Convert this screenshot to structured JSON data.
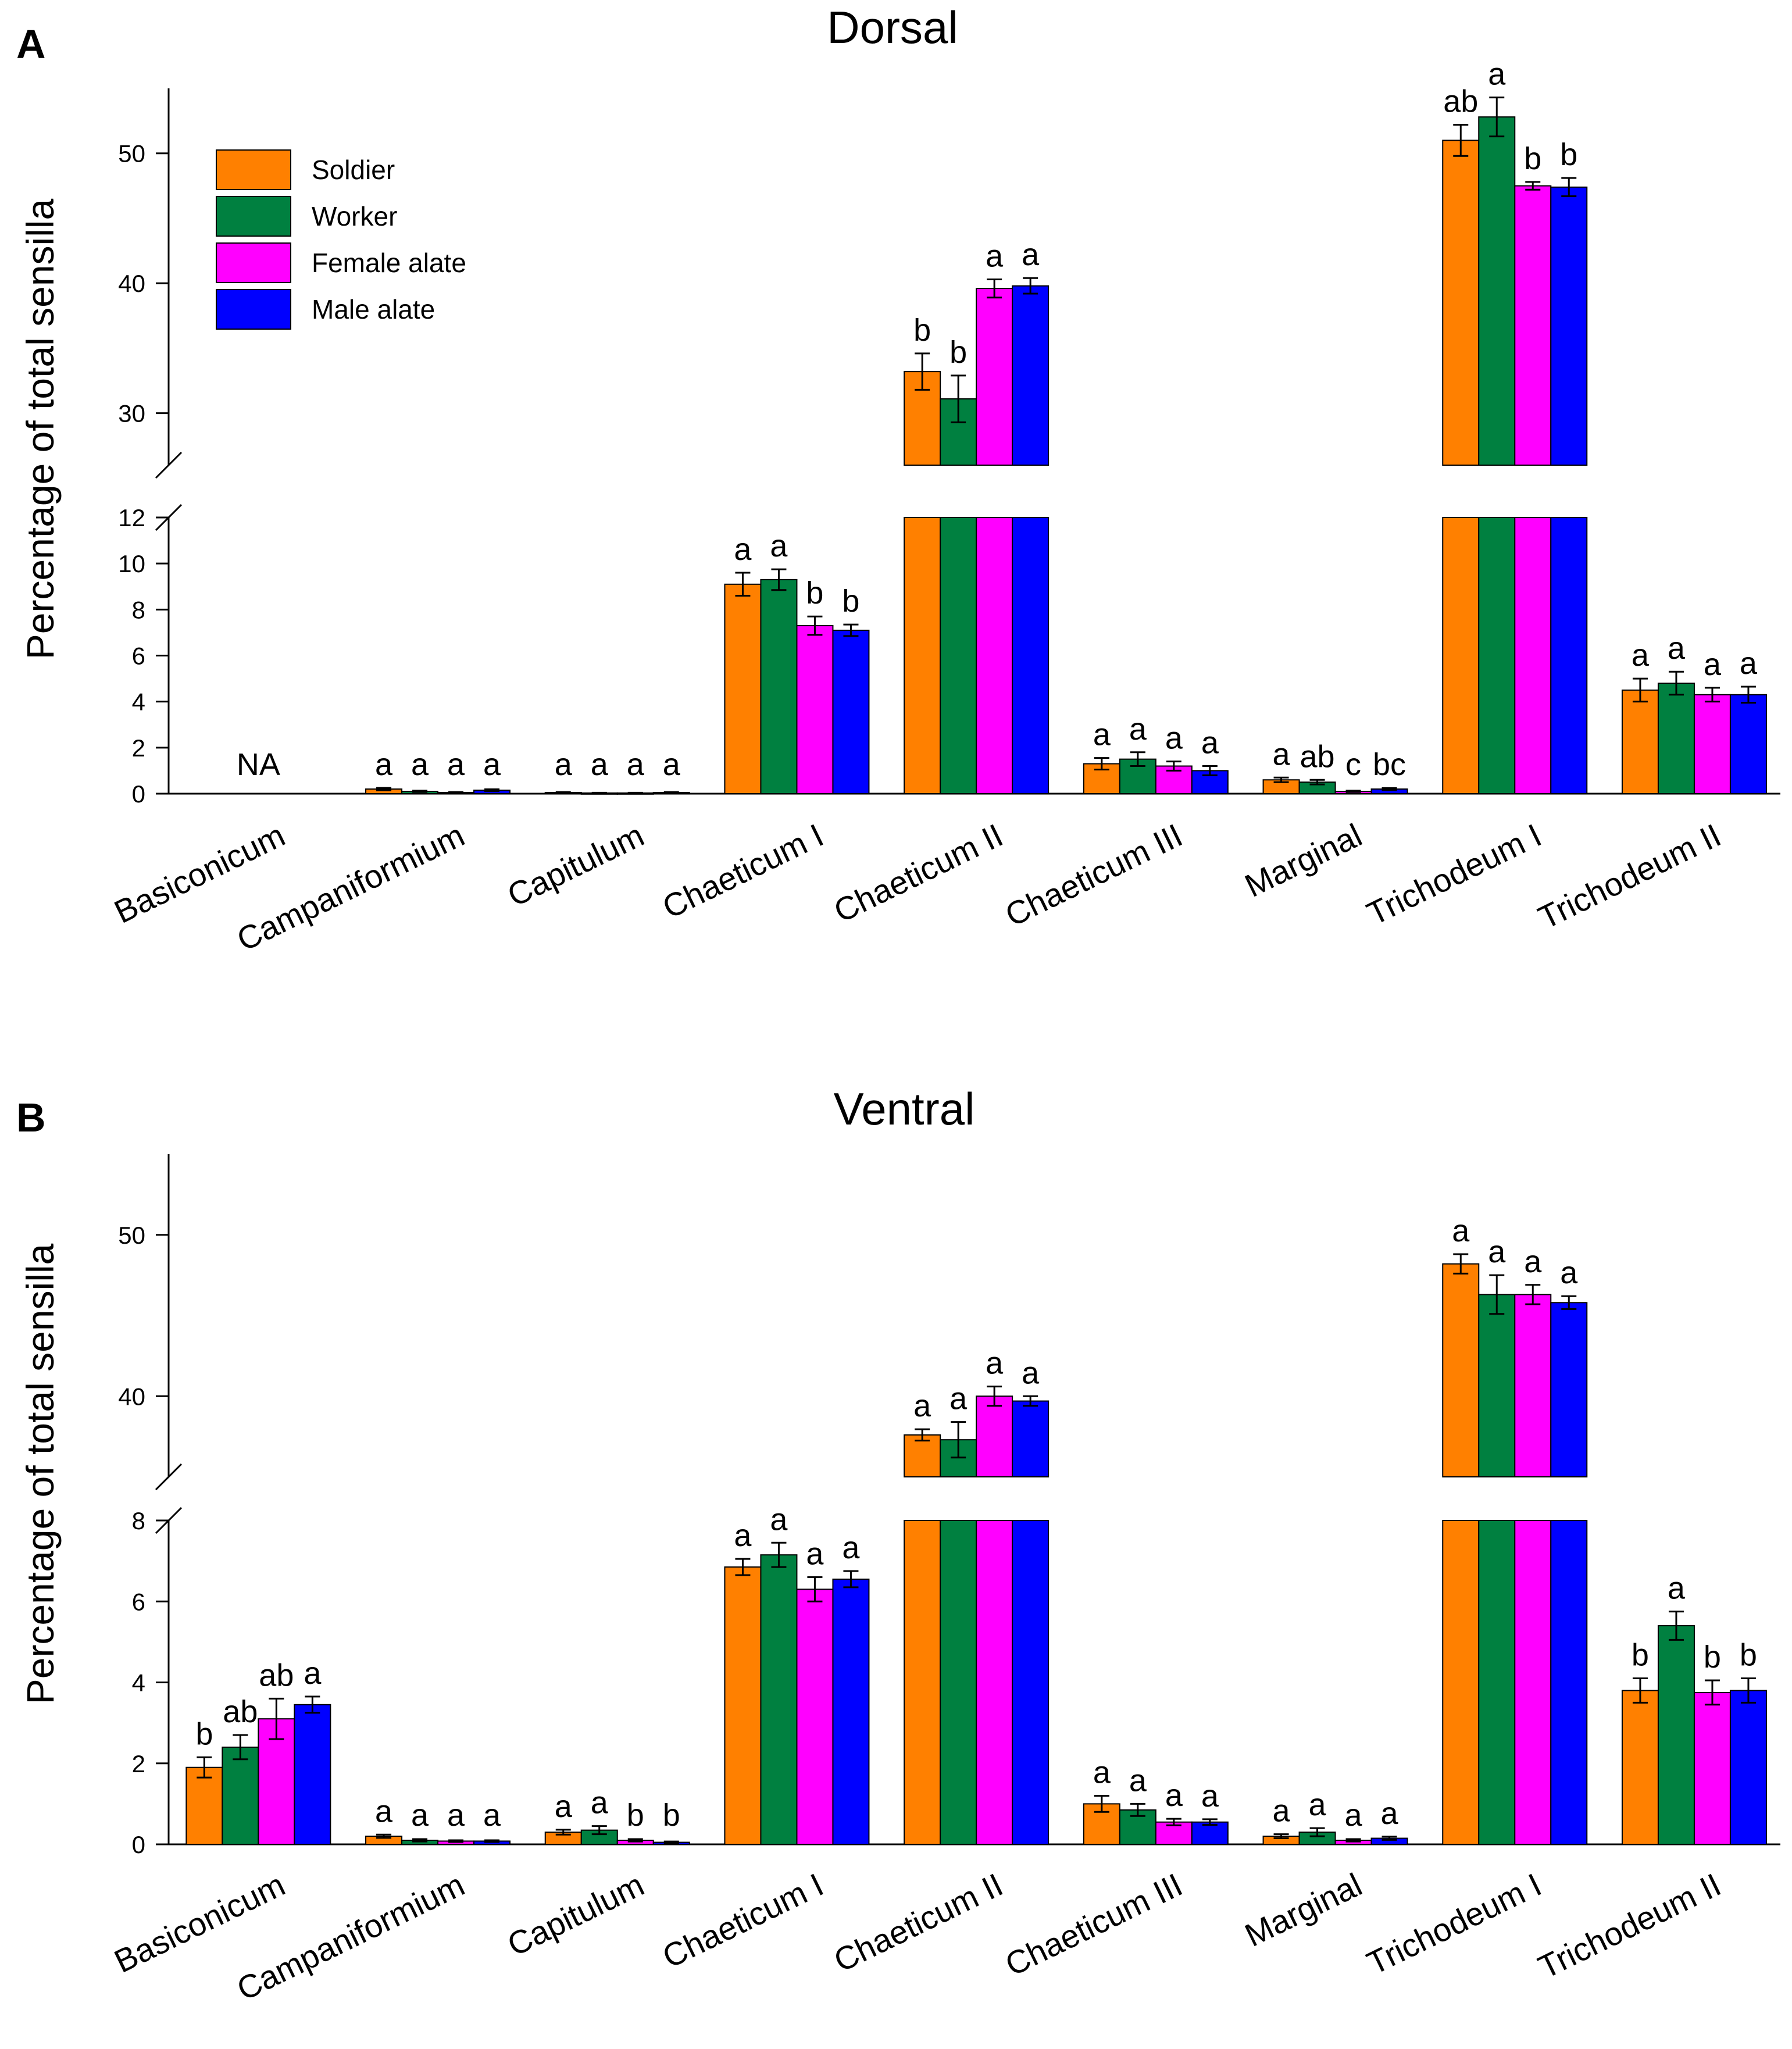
{
  "chart_data": [
    {
      "panel_label": "A",
      "type": "bar",
      "title": "Dorsal",
      "ylabel": "Percentage of total sensilla",
      "xlabel": "",
      "y_axis": {
        "segments": [
          {
            "ylim": [
              0,
              12
            ],
            "ticks": [
              0,
              2,
              4,
              6,
              8,
              10,
              12
            ]
          },
          {
            "ylim": [
              26,
              55
            ],
            "ticks": [
              30,
              40,
              50
            ]
          }
        ]
      },
      "categories": [
        "Basiconicum",
        "Campaniformium",
        "Capitulum",
        "Chaeticum I",
        "Chaeticum II",
        "Chaeticum III",
        "Marginal",
        "Trichodeum I",
        "Trichodeum II"
      ],
      "category_notes": [
        {
          "category": "Basiconicum",
          "text": "NA"
        }
      ],
      "series": [
        {
          "name": "Soldier",
          "color": "#ff8000",
          "values": [
            null,
            0.2,
            0.05,
            9.1,
            33.2,
            1.3,
            0.6,
            51.0,
            4.5
          ],
          "errors": [
            null,
            0.05,
            0.02,
            0.5,
            1.4,
            0.25,
            0.1,
            1.2,
            0.5
          ],
          "labels": [
            null,
            "a",
            "a",
            "a",
            "b",
            "a",
            "a",
            "ab",
            "a"
          ]
        },
        {
          "name": "Worker",
          "color": "#008040",
          "values": [
            null,
            0.1,
            0.03,
            9.3,
            31.1,
            1.5,
            0.5,
            52.8,
            4.8
          ],
          "errors": [
            null,
            0.03,
            0.01,
            0.45,
            1.8,
            0.3,
            0.1,
            1.5,
            0.5
          ],
          "labels": [
            null,
            "a",
            "a",
            "a",
            "b",
            "a",
            "ab",
            "a",
            "a"
          ]
        },
        {
          "name": "Female alate",
          "color": "#ff00ff",
          "values": [
            null,
            0.05,
            0.03,
            7.3,
            39.6,
            1.2,
            0.1,
            47.5,
            4.3
          ],
          "errors": [
            null,
            0.02,
            0.01,
            0.4,
            0.7,
            0.2,
            0.03,
            0.3,
            0.3
          ],
          "labels": [
            null,
            "a",
            "a",
            "b",
            "a",
            "a",
            "c",
            "b",
            "a"
          ]
        },
        {
          "name": "Male alate",
          "color": "#0000ff",
          "values": [
            null,
            0.15,
            0.05,
            7.1,
            39.8,
            1.0,
            0.2,
            47.4,
            4.3
          ],
          "errors": [
            null,
            0.04,
            0.02,
            0.25,
            0.6,
            0.2,
            0.04,
            0.7,
            0.35
          ],
          "labels": [
            null,
            "a",
            "a",
            "b",
            "a",
            "a",
            "bc",
            "b",
            "a"
          ]
        }
      ],
      "legend": {
        "position": "top-left",
        "entries": [
          "Soldier",
          "Worker",
          "Female alate",
          "Male alate"
        ]
      }
    },
    {
      "panel_label": "B",
      "type": "bar",
      "title": "Ventral",
      "ylabel": "Percentage of total sensilla",
      "xlabel": "",
      "y_axis": {
        "segments": [
          {
            "ylim": [
              0,
              8
            ],
            "ticks": [
              0,
              2,
              4,
              6,
              8
            ]
          },
          {
            "ylim": [
              35,
              55
            ],
            "ticks": [
              40,
              50
            ]
          }
        ]
      },
      "categories": [
        "Basiconicum",
        "Campaniformium",
        "Capitulum",
        "Chaeticum I",
        "Chaeticum II",
        "Chaeticum III",
        "Marginal",
        "Trichodeum I",
        "Trichodeum II"
      ],
      "series": [
        {
          "name": "Soldier",
          "color": "#ff8000",
          "values": [
            1.9,
            0.2,
            0.3,
            6.85,
            37.6,
            1.0,
            0.2,
            48.2,
            3.8
          ],
          "errors": [
            0.25,
            0.04,
            0.06,
            0.2,
            0.35,
            0.2,
            0.05,
            0.6,
            0.3
          ],
          "labels": [
            "b",
            "a",
            "a",
            "a",
            "a",
            "a",
            "a",
            "a",
            "b"
          ]
        },
        {
          "name": "Worker",
          "color": "#008040",
          "values": [
            2.4,
            0.1,
            0.35,
            7.15,
            37.3,
            0.85,
            0.3,
            46.3,
            5.4
          ],
          "errors": [
            0.3,
            0.03,
            0.1,
            0.3,
            1.1,
            0.15,
            0.1,
            1.2,
            0.35
          ],
          "labels": [
            "ab",
            "a",
            "a",
            "a",
            "a",
            "a",
            "a",
            "a",
            "a"
          ]
        },
        {
          "name": "Female alate",
          "color": "#ff00ff",
          "values": [
            3.1,
            0.08,
            0.1,
            6.3,
            40.0,
            0.55,
            0.1,
            46.3,
            3.75
          ],
          "errors": [
            0.5,
            0.02,
            0.03,
            0.3,
            0.6,
            0.08,
            0.03,
            0.6,
            0.3
          ],
          "labels": [
            "ab",
            "a",
            "b",
            "a",
            "a",
            "a",
            "a",
            "a",
            "b"
          ]
        },
        {
          "name": "Male alate",
          "color": "#0000ff",
          "values": [
            3.45,
            0.08,
            0.05,
            6.55,
            39.7,
            0.55,
            0.15,
            45.8,
            3.8
          ],
          "errors": [
            0.2,
            0.02,
            0.02,
            0.2,
            0.3,
            0.07,
            0.04,
            0.4,
            0.3
          ],
          "labels": [
            "a",
            "a",
            "b",
            "a",
            "a",
            "a",
            "a",
            "a",
            "b"
          ]
        }
      ]
    }
  ]
}
